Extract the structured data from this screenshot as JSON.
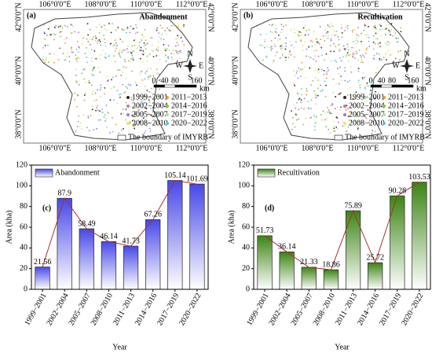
{
  "maps": [
    {
      "panel": "(a)",
      "title": "Abandonment",
      "lon_ticks": [
        "106°0'0\"E",
        "108°0'0\"E",
        "110°0'0\"E",
        "112°0'0\"E"
      ],
      "lat_ticks": [
        "42°0'0\"N",
        "40°0'0\"N",
        "38°0'0\"N"
      ],
      "scale": [
        0,
        40,
        80,
        160
      ],
      "scale_unit": "km",
      "compass": [
        "N",
        "S",
        "W",
        "E"
      ],
      "legend": [
        {
          "label": "1999−2001",
          "color": "#3a2414"
        },
        {
          "label": "2011−2013",
          "color": "#e89a2c"
        },
        {
          "label": "2002−2004",
          "color": "#c86fb8"
        },
        {
          "label": "2014−2016",
          "color": "#86c43c"
        },
        {
          "label": "2005−2007",
          "color": "#9a7ad8"
        },
        {
          "label": "2017−2019",
          "color": "#b4e48c"
        },
        {
          "label": "2008−2010",
          "color": "#e4e47a"
        },
        {
          "label": "2020−2022",
          "color": "#4cc8dc"
        }
      ],
      "boundary": "The boundary of IMYRB"
    },
    {
      "panel": "(b)",
      "title": "Recultivation",
      "lon_ticks": [
        "106°0'0\"E",
        "108°0'0\"E",
        "110°0'0\"E",
        "112°0'0\"E"
      ],
      "lat_ticks": [
        "42°0'0\"N",
        "40°0'0\"N",
        "38°0'0\"N"
      ],
      "scale": [
        0,
        40,
        80,
        160
      ],
      "scale_unit": "km",
      "compass": [
        "N",
        "S",
        "W",
        "E"
      ],
      "legend": [
        {
          "label": "1999−2001",
          "color": "#3a2414"
        },
        {
          "label": "2011−2013",
          "color": "#e89a2c"
        },
        {
          "label": "2002−2004",
          "color": "#c86fb8"
        },
        {
          "label": "2014−2016",
          "color": "#86c43c"
        },
        {
          "label": "2005−2007",
          "color": "#9a7ad8"
        },
        {
          "label": "2017−2019",
          "color": "#b4e48c"
        },
        {
          "label": "2008−2010",
          "color": "#e4e47a"
        },
        {
          "label": "2020−2022",
          "color": "#4cc8dc"
        }
      ],
      "boundary": "The boundary of IMYRB"
    }
  ],
  "chart_data": [
    {
      "type": "bar",
      "panel": "(c)",
      "x_label": "Year",
      "y_label": "Area (kha)",
      "categories": [
        "1999−2001",
        "2002−2004",
        "2005−2007",
        "2008−2010",
        "2011−2013",
        "2014−2016",
        "2017−2019",
        "2020−2022"
      ],
      "series": [
        {
          "name": "Abandonment",
          "color": "#4848e8",
          "values": [
            21.56,
            87.9,
            58.49,
            46.14,
            41.73,
            67.26,
            105.14,
            101.69
          ]
        }
      ],
      "line_color": "#a8302c",
      "ylim": [
        0,
        120
      ],
      "yticks": [
        0,
        20,
        40,
        60,
        80,
        100,
        120
      ]
    },
    {
      "type": "bar",
      "panel": "(d)",
      "x_label": "Year",
      "y_label": "Area (kha)",
      "categories": [
        "1999−2001",
        "2002−2004",
        "2005−2007",
        "2008−2010",
        "2011−2013",
        "2014−2016",
        "2017−2019",
        "2020−2022"
      ],
      "series": [
        {
          "name": "Recultivation",
          "color": "#3c8414",
          "values": [
            51.73,
            36.14,
            21.33,
            18.86,
            75.89,
            25.72,
            90.28,
            103.53
          ]
        }
      ],
      "line_color": "#a8302c",
      "ylim": [
        0,
        120
      ],
      "yticks": [
        0,
        20,
        40,
        60,
        80,
        100,
        120
      ]
    }
  ]
}
